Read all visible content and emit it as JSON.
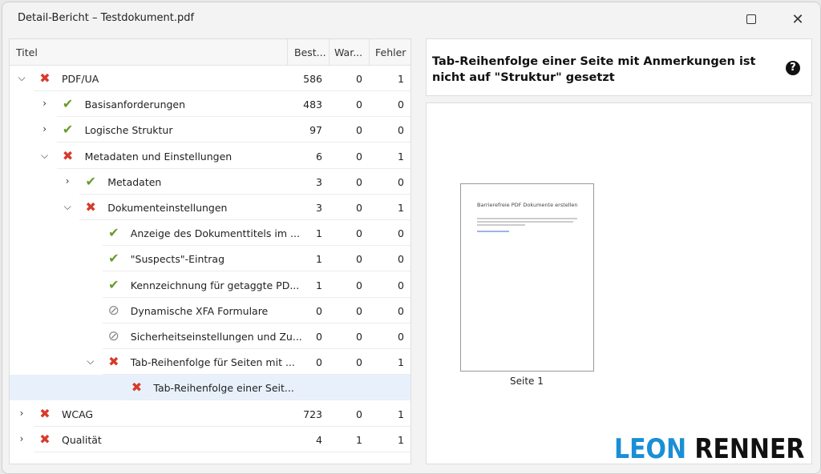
{
  "window": {
    "title": "Detail-Bericht – Testdokument.pdf",
    "maximize_icon": "square",
    "close_icon": "x"
  },
  "tree": {
    "columns": [
      "Titel",
      "Best...",
      "War...",
      "Fehler"
    ],
    "rows": [
      {
        "label": "PDF/UA",
        "status": "fail",
        "level": 0,
        "expander": "expanded",
        "best": "586",
        "warn": "0",
        "err": "1"
      },
      {
        "label": "Basisanforderungen",
        "status": "pass",
        "level": 1,
        "expander": "collapsed",
        "best": "483",
        "warn": "0",
        "err": "0"
      },
      {
        "label": "Logische Struktur",
        "status": "pass",
        "level": 1,
        "expander": "collapsed",
        "best": "97",
        "warn": "0",
        "err": "0"
      },
      {
        "label": "Metadaten und Einstellungen",
        "status": "fail",
        "level": 1,
        "expander": "expanded",
        "best": "6",
        "warn": "0",
        "err": "1"
      },
      {
        "label": "Metadaten",
        "status": "pass",
        "level": 2,
        "expander": "collapsed",
        "best": "3",
        "warn": "0",
        "err": "0"
      },
      {
        "label": "Dokumenteinstellungen",
        "status": "fail",
        "level": 2,
        "expander": "expanded",
        "best": "3",
        "warn": "0",
        "err": "1"
      },
      {
        "label": "Anzeige des Dokumenttitels im ...",
        "status": "pass",
        "level": 3,
        "expander": "none",
        "best": "1",
        "warn": "0",
        "err": "0"
      },
      {
        "label": "\"Suspects\"-Eintrag",
        "status": "pass",
        "level": 3,
        "expander": "none",
        "best": "1",
        "warn": "0",
        "err": "0"
      },
      {
        "label": "Kennzeichnung für getaggte PD...",
        "status": "pass",
        "level": 3,
        "expander": "none",
        "best": "1",
        "warn": "0",
        "err": "0"
      },
      {
        "label": "Dynamische XFA Formulare",
        "status": "na",
        "level": 3,
        "expander": "none",
        "best": "0",
        "warn": "0",
        "err": "0"
      },
      {
        "label": "Sicherheitseinstellungen und Zu...",
        "status": "na",
        "level": 3,
        "expander": "none",
        "best": "0",
        "warn": "0",
        "err": "0"
      },
      {
        "label": "Tab-Reihenfolge für Seiten mit ...",
        "status": "fail",
        "level": 3,
        "expander": "expanded",
        "best": "0",
        "warn": "0",
        "err": "1"
      },
      {
        "label": "Tab-Reihenfolge einer Seit...",
        "status": "fail",
        "level": 4,
        "expander": "none",
        "best": "",
        "warn": "",
        "err": "",
        "selected": true
      },
      {
        "label": "WCAG",
        "status": "fail",
        "level": 0,
        "expander": "collapsed",
        "best": "723",
        "warn": "0",
        "err": "1"
      },
      {
        "label": "Qualität",
        "status": "fail",
        "level": 0,
        "expander": "collapsed",
        "best": "4",
        "warn": "1",
        "err": "1"
      }
    ]
  },
  "detail": {
    "title": "Tab-Reihenfolge einer Seite mit Anmerkungen ist nicht auf \"Struktur\" gesetzt",
    "help_icon": "question-circle"
  },
  "preview": {
    "page_heading": "Barrierefreie PDF Dokumente erstellen",
    "page_caption": "Seite 1"
  },
  "logo": {
    "text": "LEON RENNER",
    "colors": {
      "LEON": "#1a8fd6",
      "RENNER": "#111111"
    }
  },
  "colors": {
    "fail": "#d83a2a",
    "pass": "#6a9a2b",
    "na": "#888888",
    "selected": "#e8f1fb"
  }
}
